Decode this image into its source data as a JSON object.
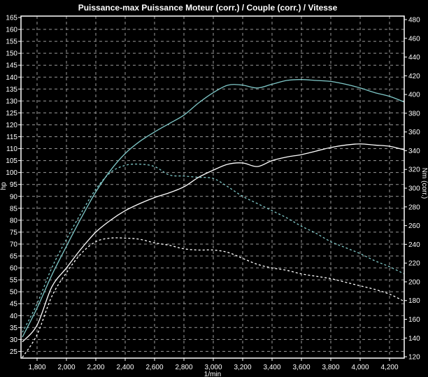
{
  "chart_data": {
    "type": "line",
    "title": "Puissance-max Puissance Moteur (corr.) / Couple (corr.) / Vitesse",
    "xlabel": "1/min",
    "ylabel_left": "hp",
    "ylabel_right": "Nm (corr.)",
    "xlim": [
      1690,
      4300
    ],
    "ylim_left": [
      22.7,
      165
    ],
    "ylim_right": [
      120,
      480
    ],
    "x_ticks": [
      1800,
      2000,
      2200,
      2400,
      2600,
      2800,
      3000,
      3200,
      3400,
      3600,
      3800,
      4000,
      4200
    ],
    "x_tick_labels": [
      "1,800",
      "2,000",
      "2,200",
      "2,400",
      "2,600",
      "2,800",
      "3,000",
      "3,200",
      "3,400",
      "3,600",
      "3,800",
      "4,000",
      "4,200"
    ],
    "y_left_ticks": [
      25,
      30,
      35,
      40,
      45,
      50,
      55,
      60,
      65,
      70,
      75,
      80,
      85,
      90,
      95,
      100,
      105,
      110,
      115,
      120,
      125,
      130,
      135,
      140,
      145,
      150,
      155,
      160,
      165
    ],
    "y_right_ticks": [
      120,
      140,
      160,
      180,
      200,
      220,
      240,
      260,
      280,
      300,
      320,
      340,
      360,
      380,
      400,
      420,
      440,
      460,
      480
    ],
    "grid": true,
    "background": "#000000",
    "x": [
      1700,
      1800,
      1900,
      2000,
      2100,
      2200,
      2300,
      2400,
      2500,
      2600,
      2700,
      2800,
      2900,
      3000,
      3100,
      3200,
      3300,
      3400,
      3500,
      3600,
      3700,
      3800,
      3900,
      4000,
      4100,
      4200,
      4300
    ],
    "series": [
      {
        "color": "#7fc8c8",
        "style": "solid",
        "axis": "right",
        "values": [
          141,
          172,
          207,
          238,
          268,
          296,
          319,
          337,
          350,
          360,
          369,
          378,
          391,
          402,
          410,
          410,
          407,
          411,
          415,
          416,
          415,
          414,
          411,
          407,
          402,
          398,
          392
        ]
      },
      {
        "color": "#ffffff",
        "style": "solid",
        "axis": "left",
        "values": [
          29,
          36,
          52,
          60,
          68,
          75,
          80,
          84,
          87,
          89.5,
          91.5,
          94,
          98,
          101,
          103.5,
          104,
          102.5,
          105,
          106.5,
          107.5,
          109,
          110.5,
          111.5,
          112,
          111.5,
          111,
          109.5
        ]
      },
      {
        "color": "#7fc8c8",
        "style": "dashed",
        "axis": "left",
        "values": [
          33,
          45,
          60,
          72,
          83,
          93,
          100,
          103,
          103.5,
          102.5,
          99,
          98.5,
          98,
          97.5,
          94,
          90,
          87,
          84,
          81,
          77.5,
          74.5,
          71,
          68.5,
          66,
          63,
          60.5,
          57.5
        ]
      },
      {
        "color": "#ffffff",
        "style": "dashed",
        "axis": "left",
        "values": [
          22.5,
          32,
          48,
          58,
          66,
          71,
          72.5,
          72.5,
          72,
          70.5,
          69.5,
          68,
          67.5,
          67.5,
          66.5,
          64,
          61.5,
          60,
          59,
          57.5,
          56.5,
          55.5,
          54,
          52.5,
          51,
          49,
          46
        ]
      }
    ]
  }
}
